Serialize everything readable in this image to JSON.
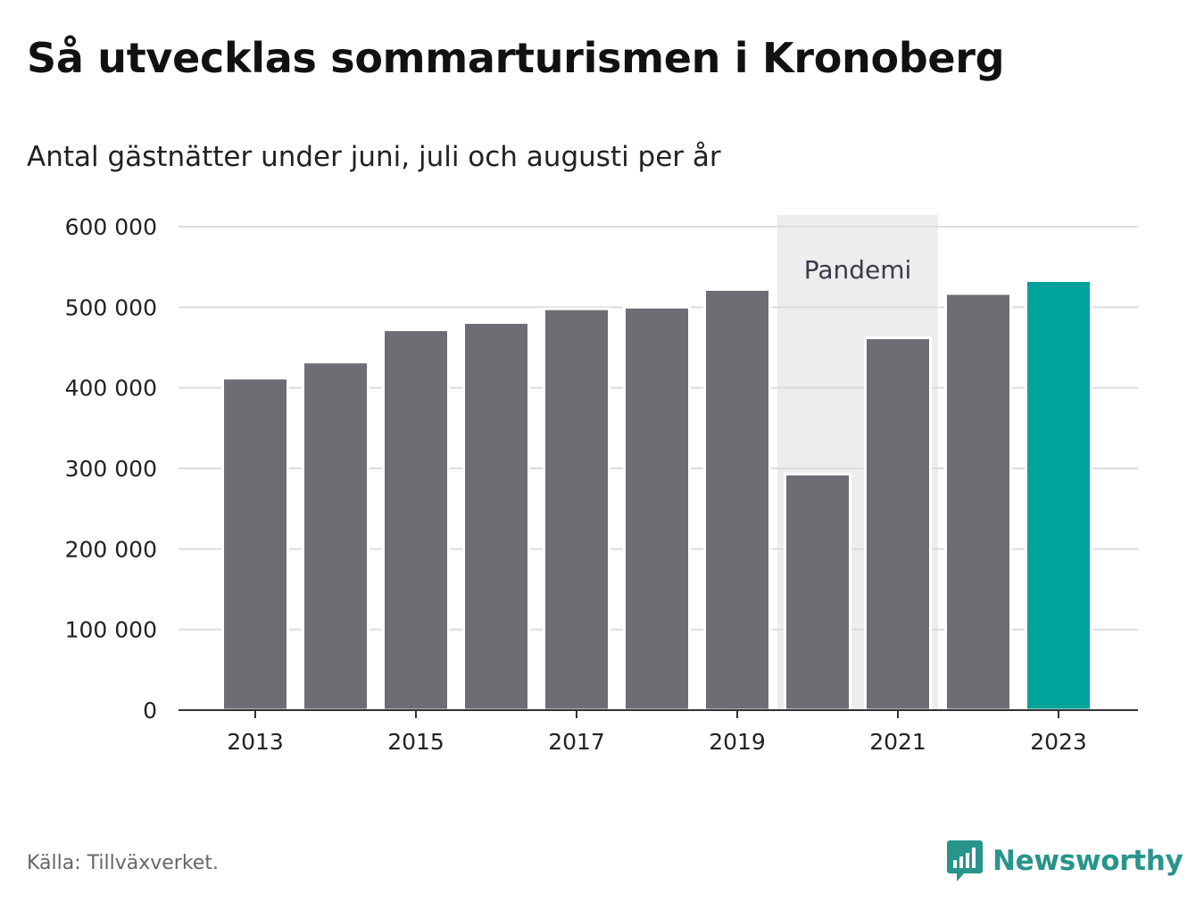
{
  "header": {
    "title": "Så utvecklas sommarturismen i Kronoberg",
    "subtitle": "Antal gästnätter under juni, juli och augusti per år"
  },
  "footer": {
    "source": "Källa: Tillväxverket.",
    "brand": "Newsworthy",
    "brand_icon": "bar-chart-speech-bubble-icon"
  },
  "colors": {
    "bar": "#6e6d73",
    "highlight": "#00a39b",
    "band": "#ededed",
    "grid": "#dcdcdc",
    "axis": "#333333",
    "brand": "#27958b"
  },
  "chart_data": {
    "type": "bar",
    "categories": [
      "2013",
      "2014",
      "2015",
      "2016",
      "2017",
      "2018",
      "2019",
      "2020",
      "2021",
      "2022",
      "2023"
    ],
    "values": [
      412000,
      432000,
      472000,
      481000,
      498000,
      500000,
      522000,
      293000,
      462000,
      517000,
      533000
    ],
    "highlight_category": "2023",
    "x_tick_labels": [
      "2013",
      "2015",
      "2017",
      "2019",
      "2021",
      "2023"
    ],
    "y_ticks": [
      0,
      100000,
      200000,
      300000,
      400000,
      500000,
      600000
    ],
    "y_tick_labels": [
      "0",
      "100 000",
      "200 000",
      "300 000",
      "400 000",
      "500 000",
      "600 000"
    ],
    "ylim": [
      0,
      600000
    ],
    "grid": true,
    "annotation": {
      "label": "Pandemi",
      "from": "2020",
      "to": "2021"
    },
    "xlabel": "",
    "ylabel": ""
  }
}
